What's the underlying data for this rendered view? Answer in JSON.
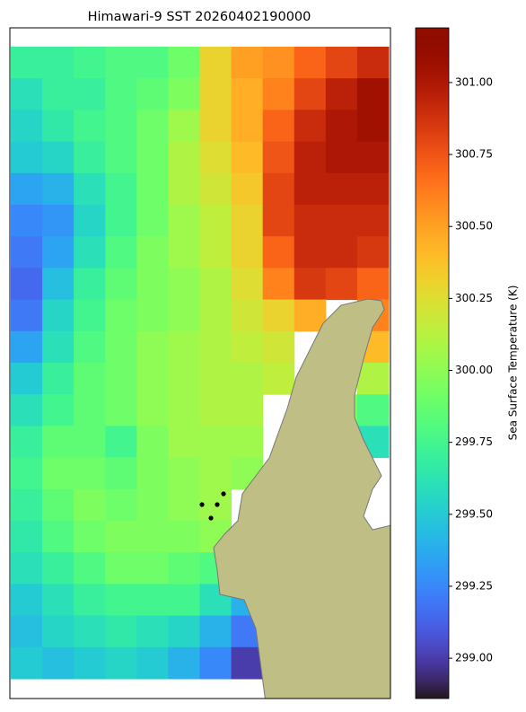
{
  "chart_data": {
    "type": "heatmap",
    "title": "Himawari-9 SST 20260402190000",
    "colormap": "turbo",
    "clim": [
      298.86,
      301.19
    ],
    "colorbar_label": "Sea Surface Temperature (K)",
    "colorbar_ticks": [
      {
        "value": 299.0,
        "label": "299.00"
      },
      {
        "value": 299.25,
        "label": "299.25"
      },
      {
        "value": 299.5,
        "label": "299.50"
      },
      {
        "value": 299.75,
        "label": "299.75"
      },
      {
        "value": 300.0,
        "label": "300.00"
      },
      {
        "value": 300.25,
        "label": "300.25"
      },
      {
        "value": 300.5,
        "label": "300.50"
      },
      {
        "value": 300.75,
        "label": "300.75"
      },
      {
        "value": 301.0,
        "label": "301.00"
      }
    ],
    "z": [
      [
        299.7,
        299.7,
        299.75,
        299.8,
        299.8,
        299.9,
        300.3,
        300.5,
        300.55,
        300.7,
        300.8,
        300.9
      ],
      [
        299.6,
        299.7,
        299.7,
        299.8,
        299.85,
        299.95,
        300.3,
        300.45,
        300.6,
        300.8,
        300.95,
        301.05
      ],
      [
        299.55,
        299.65,
        299.75,
        299.8,
        299.9,
        300.05,
        300.3,
        300.45,
        300.7,
        300.9,
        301.0,
        301.05
      ],
      [
        299.5,
        299.55,
        299.7,
        299.8,
        299.9,
        300.1,
        300.25,
        300.4,
        300.75,
        300.95,
        301.0,
        301.0
      ],
      [
        299.35,
        299.4,
        299.6,
        299.75,
        299.9,
        300.1,
        300.2,
        300.35,
        300.8,
        300.95,
        300.95,
        300.95
      ],
      [
        299.25,
        299.3,
        299.55,
        299.75,
        299.9,
        300.05,
        300.15,
        300.3,
        300.8,
        300.9,
        300.9,
        300.9
      ],
      [
        299.2,
        299.35,
        299.6,
        299.8,
        299.95,
        300.05,
        300.15,
        300.3,
        300.7,
        300.9,
        300.9,
        300.85
      ],
      [
        299.15,
        299.45,
        299.7,
        299.85,
        299.95,
        300.0,
        300.1,
        300.25,
        300.6,
        300.85,
        300.8,
        300.7
      ],
      [
        299.2,
        299.55,
        299.75,
        299.9,
        299.95,
        300.0,
        300.1,
        300.2,
        300.3,
        300.45,
        null,
        300.6
      ],
      [
        299.35,
        299.6,
        299.8,
        299.9,
        300.0,
        300.05,
        300.1,
        300.15,
        300.2,
        null,
        null,
        300.4
      ],
      [
        299.5,
        299.7,
        299.85,
        299.9,
        300.0,
        300.05,
        300.1,
        300.1,
        300.15,
        null,
        null,
        300.1
      ],
      [
        299.6,
        299.75,
        299.85,
        299.9,
        300.0,
        300.05,
        300.1,
        300.1,
        null,
        null,
        299.95,
        299.8
      ],
      [
        299.7,
        299.85,
        299.85,
        299.75,
        299.95,
        300.05,
        300.05,
        300.05,
        null,
        null,
        null,
        299.6
      ],
      [
        299.75,
        299.9,
        299.9,
        299.85,
        299.95,
        300.0,
        300.05,
        300.0,
        null,
        null,
        null,
        null
      ],
      [
        299.7,
        299.85,
        299.95,
        299.9,
        299.95,
        300.0,
        300.05,
        null,
        null,
        null,
        null,
        null
      ],
      [
        299.65,
        299.8,
        299.9,
        299.95,
        299.95,
        299.95,
        300.0,
        null,
        null,
        null,
        null,
        null
      ],
      [
        299.6,
        299.7,
        299.8,
        299.9,
        299.9,
        299.85,
        299.8,
        null,
        null,
        null,
        null,
        null
      ],
      [
        299.5,
        299.6,
        299.7,
        299.75,
        299.75,
        299.75,
        299.6,
        299.4,
        null,
        null,
        null,
        null
      ],
      [
        299.45,
        299.55,
        299.6,
        299.65,
        299.6,
        299.55,
        299.4,
        299.2,
        null,
        null,
        null,
        null
      ],
      [
        299.5,
        299.45,
        299.5,
        299.55,
        299.5,
        299.4,
        299.25,
        299.0,
        null,
        null,
        null,
        null
      ]
    ]
  }
}
